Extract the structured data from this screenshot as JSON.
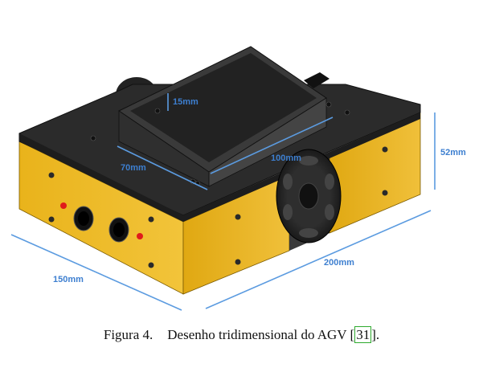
{
  "figure": {
    "dimensions": {
      "depth_15": "15mm",
      "width_70": "70mm",
      "width_100": "100mm",
      "height_52": "52mm",
      "length_200": "200mm",
      "width_150": "150mm"
    },
    "colors": {
      "body_yellow": "#e8b51d",
      "top_plate": "#2a2a2a",
      "dimension_line": "#5b9be0",
      "led_red": "#e01b1b"
    }
  },
  "caption": {
    "label": "Figura 4.",
    "text": "Desenho tridimensional do AGV ",
    "cite_open": "[",
    "cite_ref": "31",
    "cite_close": "]."
  }
}
